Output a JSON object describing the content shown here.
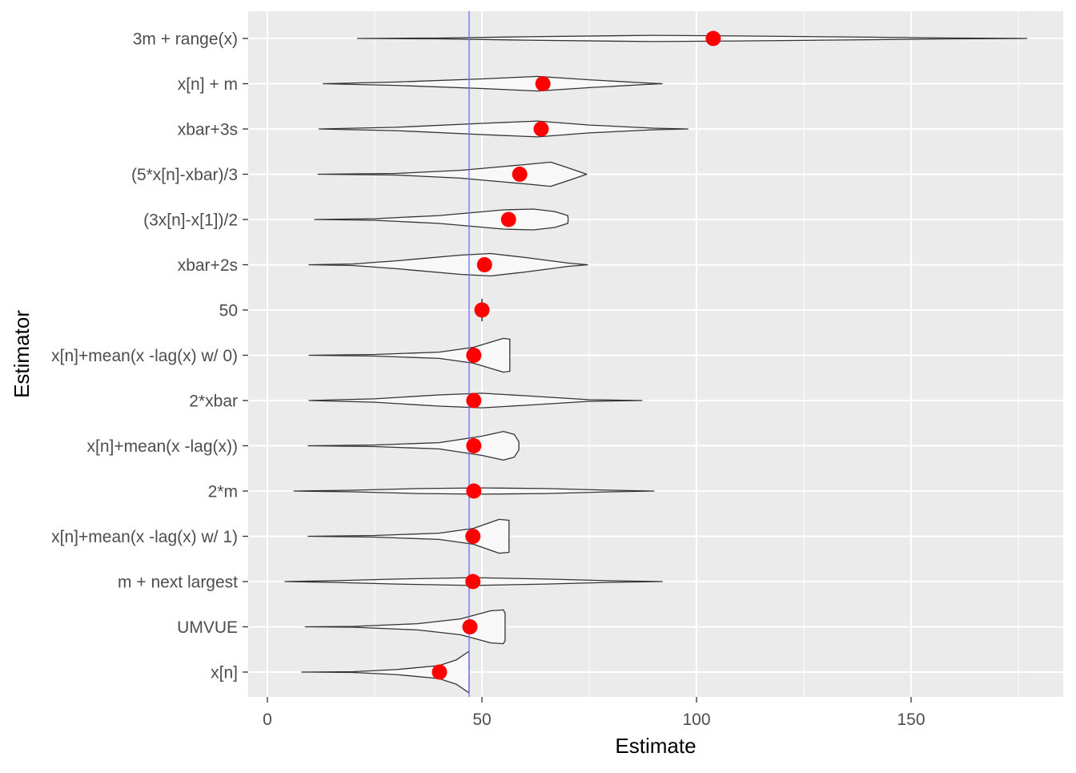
{
  "chart_data": {
    "type": "violin",
    "xlabel": "Estimate",
    "ylabel": "Estimator",
    "xlim": [
      -5,
      185
    ],
    "x_ticks": [
      0,
      50,
      100,
      150
    ],
    "x_tick_labels": [
      "0",
      "50",
      "100",
      "150"
    ],
    "grid": true,
    "reference_line": {
      "x": 47,
      "color": "#6B6BFF"
    },
    "point_color": "#FF0000",
    "violin_fill": "#F8F8F8",
    "violin_stroke": "#333333",
    "panel_background": "#EBEBEB",
    "categories": [
      "3m + range(x)",
      "x[n] + m",
      "xbar+3s",
      "(5*x[n]-xbar)/3",
      "(3x[n]-x[1])/2",
      "xbar+2s",
      "50",
      "x[n]+mean(x -lag(x) w/ 0)",
      "2*xbar",
      "x[n]+mean(x -lag(x))",
      "2*m",
      "x[n]+mean(x -lag(x) w/ 1)",
      "m + next largest",
      "UMVUE",
      "x[n]"
    ],
    "point_estimates": [
      103.9,
      64.2,
      63.8,
      58.8,
      56.2,
      50.6,
      50,
      48.1,
      48.1,
      48.1,
      48.1,
      47.9,
      47.9,
      47.2,
      40.1
    ],
    "violins": [
      [
        [
          21,
          0
        ],
        [
          40,
          0.02
        ],
        [
          60,
          0.08
        ],
        [
          90,
          0.15
        ],
        [
          110,
          0.12
        ],
        [
          140,
          0.06
        ],
        [
          160,
          0.02
        ],
        [
          177,
          0
        ]
      ],
      [
        [
          13,
          0
        ],
        [
          30,
          0.08
        ],
        [
          50,
          0.23
        ],
        [
          63,
          0.35
        ],
        [
          75,
          0.19
        ],
        [
          88,
          0.04
        ],
        [
          92,
          0
        ]
      ],
      [
        [
          12,
          0
        ],
        [
          30,
          0.08
        ],
        [
          50,
          0.27
        ],
        [
          63,
          0.38
        ],
        [
          75,
          0.19
        ],
        [
          90,
          0.04
        ],
        [
          98,
          0
        ]
      ],
      [
        [
          11.8,
          0
        ],
        [
          30,
          0.04
        ],
        [
          45,
          0.19
        ],
        [
          60,
          0.46
        ],
        [
          66,
          0.58
        ],
        [
          70,
          0.31
        ],
        [
          74.4,
          0
        ]
      ],
      [
        [
          11,
          0
        ],
        [
          25,
          0.04
        ],
        [
          40,
          0.19
        ],
        [
          55,
          0.46
        ],
        [
          62,
          0.5
        ],
        [
          67,
          0.38
        ],
        [
          70,
          0.19
        ],
        [
          70.1,
          0
        ]
      ],
      [
        [
          9.7,
          0
        ],
        [
          20,
          0.04
        ],
        [
          30,
          0.19
        ],
        [
          45,
          0.46
        ],
        [
          52,
          0.54
        ],
        [
          60,
          0.35
        ],
        [
          70,
          0.08
        ],
        [
          74.6,
          0
        ]
      ],
      [
        [
          50,
          0
        ],
        [
          50,
          0.54
        ],
        [
          50,
          0
        ]
      ],
      [
        [
          9.7,
          0
        ],
        [
          25,
          0.04
        ],
        [
          40,
          0.15
        ],
        [
          48,
          0.38
        ],
        [
          55,
          0.81
        ],
        [
          56.5,
          0.77
        ],
        [
          56.5,
          0
        ]
      ],
      [
        [
          9.7,
          0
        ],
        [
          25,
          0.08
        ],
        [
          40,
          0.27
        ],
        [
          50,
          0.35
        ],
        [
          60,
          0.23
        ],
        [
          75,
          0.04
        ],
        [
          87.3,
          0
        ]
      ],
      [
        [
          9.5,
          0
        ],
        [
          25,
          0.04
        ],
        [
          40,
          0.15
        ],
        [
          50,
          0.46
        ],
        [
          55,
          0.69
        ],
        [
          57.5,
          0.55
        ],
        [
          58.6,
          0.2
        ],
        [
          58.6,
          0
        ]
      ],
      [
        [
          6.2,
          0
        ],
        [
          20,
          0.04
        ],
        [
          35,
          0.12
        ],
        [
          50,
          0.15
        ],
        [
          65,
          0.12
        ],
        [
          80,
          0.04
        ],
        [
          90.1,
          0
        ]
      ],
      [
        [
          9.5,
          0
        ],
        [
          25,
          0.04
        ],
        [
          40,
          0.15
        ],
        [
          48,
          0.38
        ],
        [
          54,
          0.81
        ],
        [
          56.3,
          0.77
        ],
        [
          56.3,
          0
        ]
      ],
      [
        [
          4.1,
          0
        ],
        [
          15,
          0.04
        ],
        [
          30,
          0.12
        ],
        [
          48,
          0.19
        ],
        [
          65,
          0.12
        ],
        [
          80,
          0.04
        ],
        [
          92,
          0
        ]
      ],
      [
        [
          8.8,
          0
        ],
        [
          20,
          0.02
        ],
        [
          35,
          0.15
        ],
        [
          45,
          0.38
        ],
        [
          52,
          0.77
        ],
        [
          55,
          0.81
        ],
        [
          55.4,
          0.65
        ],
        [
          55.4,
          0
        ]
      ],
      [
        [
          8,
          0
        ],
        [
          20,
          0.02
        ],
        [
          30,
          0.12
        ],
        [
          40,
          0.31
        ],
        [
          44,
          0.58
        ],
        [
          47,
          1.0
        ],
        [
          47,
          0
        ]
      ]
    ]
  }
}
